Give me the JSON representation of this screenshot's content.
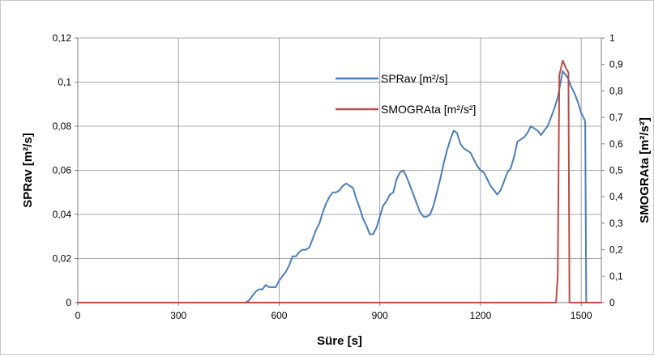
{
  "chart_data": {
    "type": "line",
    "title": "",
    "xlabel": "Süre [s]",
    "ylabel": "SPRav [m²/s]",
    "y2label": "SMOGRAta [m²/s²]",
    "xlim": [
      0,
      1560
    ],
    "ylim": [
      0,
      0.12
    ],
    "y2lim": [
      0,
      1
    ],
    "x_ticks": [
      0,
      300,
      600,
      900,
      1200,
      1500
    ],
    "x_tick_labels": [
      "0",
      "300",
      "600",
      "900",
      "1200",
      "1500"
    ],
    "y_ticks": [
      0,
      0.02,
      0.04,
      0.06,
      0.08,
      0.1,
      0.12
    ],
    "y_tick_labels": [
      "0",
      "0,02",
      "0,04",
      "0,06",
      "0,08",
      "0,1",
      "0,12"
    ],
    "y2_ticks": [
      0,
      0.1,
      0.2,
      0.3,
      0.4,
      0.5,
      0.6,
      0.7,
      0.8,
      0.9,
      1
    ],
    "y2_tick_labels": [
      "0",
      "0,1",
      "0,2",
      "0,3",
      "0,4",
      "0,5",
      "0,6",
      "0,7",
      "0,8",
      "0,9",
      "1"
    ],
    "grid": true,
    "legend_position": "top-right",
    "series": [
      {
        "name": "SPRav [m²/s]",
        "axis": "left",
        "color": "#4a7ebb",
        "points": [
          [
            0,
            0
          ],
          [
            500,
            0
          ],
          [
            510,
            0.001
          ],
          [
            520,
            0.003
          ],
          [
            530,
            0.005
          ],
          [
            540,
            0.006
          ],
          [
            550,
            0.006
          ],
          [
            560,
            0.008
          ],
          [
            570,
            0.007
          ],
          [
            580,
            0.007
          ],
          [
            590,
            0.007
          ],
          [
            600,
            0.01
          ],
          [
            610,
            0.012
          ],
          [
            620,
            0.014
          ],
          [
            630,
            0.017
          ],
          [
            640,
            0.021
          ],
          [
            650,
            0.021
          ],
          [
            660,
            0.023
          ],
          [
            670,
            0.024
          ],
          [
            680,
            0.024
          ],
          [
            690,
            0.025
          ],
          [
            700,
            0.029
          ],
          [
            710,
            0.033
          ],
          [
            720,
            0.036
          ],
          [
            730,
            0.041
          ],
          [
            740,
            0.045
          ],
          [
            750,
            0.048
          ],
          [
            760,
            0.05
          ],
          [
            770,
            0.05
          ],
          [
            780,
            0.051
          ],
          [
            790,
            0.053
          ],
          [
            800,
            0.054
          ],
          [
            810,
            0.053
          ],
          [
            820,
            0.052
          ],
          [
            830,
            0.047
          ],
          [
            840,
            0.043
          ],
          [
            850,
            0.038
          ],
          [
            860,
            0.035
          ],
          [
            870,
            0.031
          ],
          [
            880,
            0.031
          ],
          [
            890,
            0.034
          ],
          [
            900,
            0.039
          ],
          [
            910,
            0.044
          ],
          [
            920,
            0.046
          ],
          [
            930,
            0.049
          ],
          [
            940,
            0.05
          ],
          [
            950,
            0.056
          ],
          [
            960,
            0.059
          ],
          [
            970,
            0.06
          ],
          [
            980,
            0.057
          ],
          [
            990,
            0.053
          ],
          [
            1000,
            0.049
          ],
          [
            1010,
            0.045
          ],
          [
            1020,
            0.041
          ],
          [
            1030,
            0.039
          ],
          [
            1040,
            0.039
          ],
          [
            1050,
            0.04
          ],
          [
            1060,
            0.044
          ],
          [
            1070,
            0.05
          ],
          [
            1080,
            0.056
          ],
          [
            1090,
            0.063
          ],
          [
            1100,
            0.069
          ],
          [
            1110,
            0.074
          ],
          [
            1120,
            0.078
          ],
          [
            1130,
            0.077
          ],
          [
            1140,
            0.072
          ],
          [
            1150,
            0.07
          ],
          [
            1160,
            0.069
          ],
          [
            1170,
            0.068
          ],
          [
            1180,
            0.065
          ],
          [
            1190,
            0.062
          ],
          [
            1200,
            0.06
          ],
          [
            1210,
            0.059
          ],
          [
            1220,
            0.056
          ],
          [
            1230,
            0.053
          ],
          [
            1240,
            0.051
          ],
          [
            1250,
            0.049
          ],
          [
            1260,
            0.051
          ],
          [
            1270,
            0.055
          ],
          [
            1280,
            0.059
          ],
          [
            1290,
            0.061
          ],
          [
            1300,
            0.066
          ],
          [
            1310,
            0.073
          ],
          [
            1320,
            0.074
          ],
          [
            1330,
            0.075
          ],
          [
            1340,
            0.077
          ],
          [
            1350,
            0.08
          ],
          [
            1360,
            0.079
          ],
          [
            1370,
            0.078
          ],
          [
            1380,
            0.076
          ],
          [
            1390,
            0.078
          ],
          [
            1400,
            0.08
          ],
          [
            1410,
            0.084
          ],
          [
            1420,
            0.088
          ],
          [
            1430,
            0.093
          ],
          [
            1440,
            0.101
          ],
          [
            1445,
            0.105
          ],
          [
            1450,
            0.104
          ],
          [
            1460,
            0.102
          ],
          [
            1470,
            0.098
          ],
          [
            1480,
            0.095
          ],
          [
            1490,
            0.091
          ],
          [
            1500,
            0.086
          ],
          [
            1510,
            0.083
          ],
          [
            1512,
            0.082
          ],
          [
            1515,
            0
          ]
        ]
      },
      {
        "name": "SMOGRAta [m²/s²]",
        "axis": "right",
        "color": "#be4b48",
        "points": [
          [
            0,
            0
          ],
          [
            1425,
            0
          ],
          [
            1430,
            0.1
          ],
          [
            1435,
            0.86
          ],
          [
            1445,
            0.915
          ],
          [
            1455,
            0.885
          ],
          [
            1462,
            0.87
          ],
          [
            1465,
            0
          ],
          [
            1560,
            0
          ]
        ]
      }
    ]
  }
}
